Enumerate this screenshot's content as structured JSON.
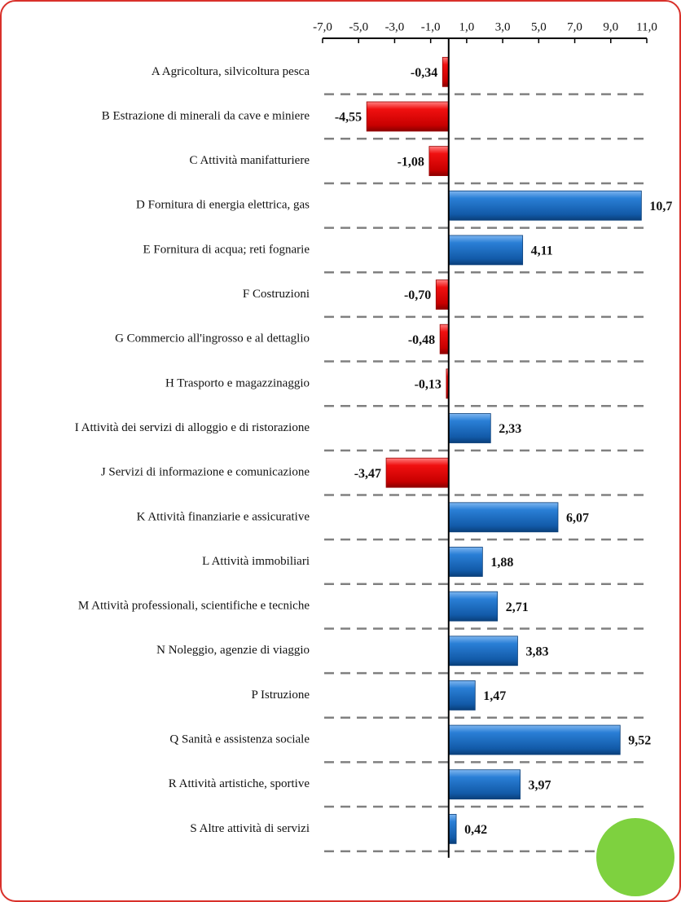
{
  "chart_data": {
    "type": "bar",
    "orientation": "horizontal",
    "categories": [
      "A Agricoltura, silvicoltura pesca",
      "B Estrazione di minerali da cave e miniere",
      "C Attività manifatturiere",
      "D Fornitura di energia elettrica, gas",
      "E Fornitura di acqua; reti fognarie",
      "F Costruzioni",
      "G Commercio all'ingrosso e al dettaglio",
      "H Trasporto e magazzinaggio",
      "I Attività dei servizi di alloggio e di ristorazione",
      "J Servizi di informazione e comunicazione",
      "K Attività finanziarie e assicurative",
      "L Attività immobiliari",
      "M Attività professionali, scientifiche e tecniche",
      "N Noleggio, agenzie di viaggio",
      "P Istruzione",
      "Q Sanità e assistenza sociale",
      "R Attività artistiche, sportive",
      "S Altre attività di servizi"
    ],
    "values": [
      -0.34,
      -4.55,
      -1.08,
      10.7,
      4.11,
      -0.7,
      -0.48,
      -0.13,
      2.33,
      -3.47,
      6.07,
      1.88,
      2.71,
      3.83,
      1.47,
      9.52,
      3.97,
      0.42
    ],
    "value_labels": [
      "-0,34",
      "-4,55",
      "-1,08",
      "10,7",
      "4,11",
      "-0,70",
      "-0,48",
      "-0,13",
      "2,33",
      "-3,47",
      "6,07",
      "1,88",
      "2,71",
      "3,83",
      "1,47",
      "9,52",
      "3,97",
      "0,42"
    ],
    "negative_color": "#e00000",
    "positive_color": "#1f6fc4",
    "xlim": [
      -7,
      11
    ],
    "xticks": [
      {
        "value": -7,
        "label": "-7,0"
      },
      {
        "value": -5,
        "label": "-5,0"
      },
      {
        "value": -3,
        "label": "-3,0"
      },
      {
        "value": -1,
        "label": "-1,0"
      },
      {
        "value": 1,
        "label": "1,0"
      },
      {
        "value": 3,
        "label": "3,0"
      },
      {
        "value": 5,
        "label": "5,0"
      },
      {
        "value": 7,
        "label": "7,0"
      },
      {
        "value": 9,
        "label": "9,0"
      },
      {
        "value": 11,
        "label": "11,0"
      }
    ],
    "grid": true
  }
}
